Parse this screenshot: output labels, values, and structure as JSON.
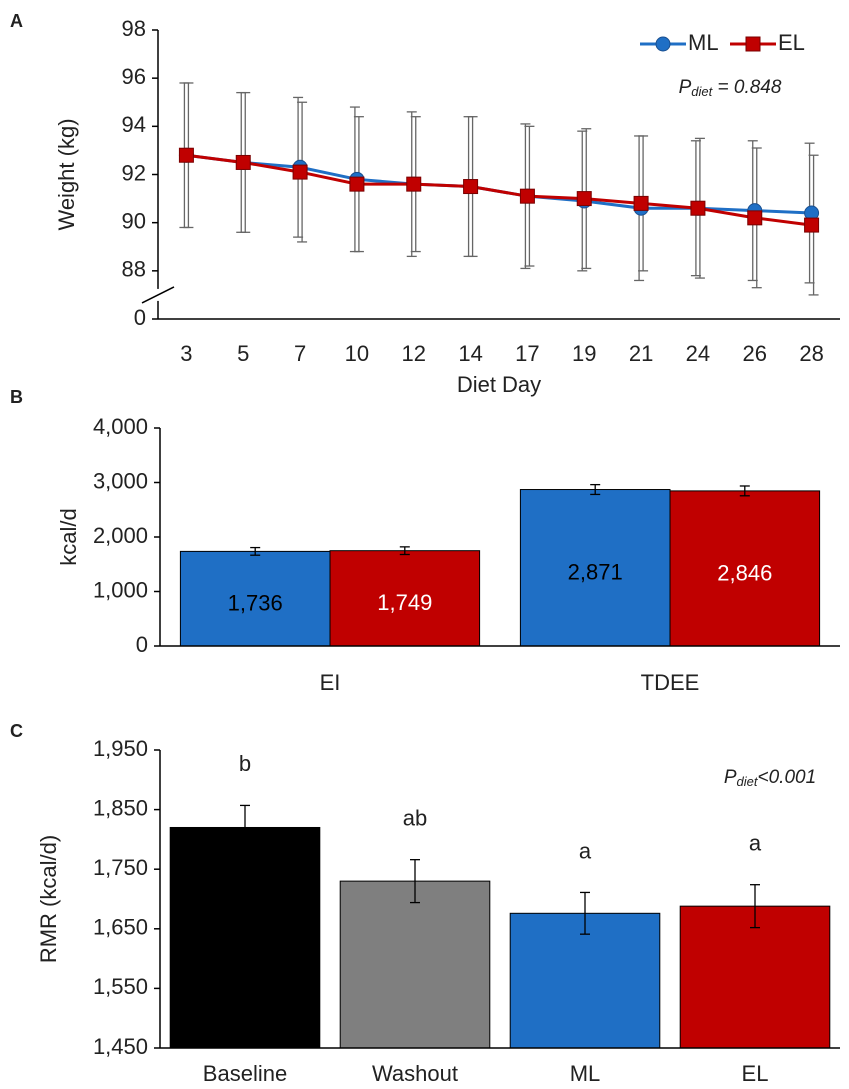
{
  "chart_data": [
    {
      "type": "line",
      "panel": "A",
      "y_label": "Weight (kg)",
      "x_label": "Diet Day",
      "categories": [
        "3",
        "5",
        "7",
        "10",
        "12",
        "14",
        "17",
        "19",
        "21",
        "24",
        "26",
        "28"
      ],
      "series": [
        {
          "name": "ML",
          "color": "#1f6fc5",
          "marker": "circle",
          "values": [
            92.8,
            92.5,
            92.3,
            91.8,
            91.6,
            91.5,
            91.1,
            90.9,
            90.6,
            90.6,
            90.5,
            90.4
          ],
          "errors": [
            3.0,
            2.9,
            2.9,
            3.0,
            3.0,
            2.9,
            3.0,
            2.9,
            3.0,
            2.8,
            2.9,
            2.9
          ]
        },
        {
          "name": "EL",
          "color": "#c00000",
          "marker": "square",
          "values": [
            92.8,
            92.5,
            92.1,
            91.6,
            91.6,
            91.5,
            91.1,
            91.0,
            90.8,
            90.6,
            90.2,
            89.9
          ],
          "errors": [
            3.0,
            2.9,
            2.9,
            2.8,
            2.8,
            2.9,
            2.9,
            2.9,
            2.8,
            2.9,
            2.9,
            2.9
          ]
        }
      ],
      "ylim": [
        0,
        98
      ],
      "yticks": [
        0,
        88,
        90,
        92,
        94,
        96,
        98
      ],
      "broken_axis": true,
      "legend": "upper right",
      "annotation": {
        "symbol": "P",
        "subscript": "diet",
        "text": " = 0.848"
      }
    },
    {
      "type": "grouped_bar",
      "panel": "B",
      "y_label": "kcal/d",
      "categories": [
        "EI",
        "TDEE"
      ],
      "series": [
        {
          "color": "#1f6fc5",
          "label_color": "#000000",
          "values": [
            1736,
            2871
          ],
          "value_labels": [
            "1,736",
            "2,871"
          ],
          "errors": [
            70,
            90
          ]
        },
        {
          "color": "#c00000",
          "label_color": "#ffffff",
          "values": [
            1749,
            2846
          ],
          "value_labels": [
            "1,749",
            "2,846"
          ],
          "errors": [
            70,
            90
          ]
        }
      ],
      "ylim": [
        0,
        4000
      ],
      "yticks": [
        0,
        {
          "value": 1000,
          "label": "1,000"
        },
        {
          "value": 2000,
          "label": "2,000"
        },
        {
          "value": 3000,
          "label": "3,000"
        },
        {
          "value": 4000,
          "label": "4,000"
        }
      ]
    },
    {
      "type": "bar",
      "panel": "C",
      "y_label": "RMR (kcal/d)",
      "categories": [
        "Baseline",
        "Washout",
        "ML",
        "EL"
      ],
      "values": [
        1820,
        1730,
        1676,
        1688
      ],
      "errors": [
        37,
        36,
        35,
        36
      ],
      "colors": [
        "#000000",
        "#7f7f7f",
        "#1f6fc5",
        "#c00000"
      ],
      "letters": [
        "b",
        "ab",
        "a",
        "a"
      ],
      "ylim": [
        1450,
        1950
      ],
      "yticks": [
        {
          "value": 1450,
          "label": "1,450"
        },
        {
          "value": 1550,
          "label": "1,550"
        },
        {
          "value": 1650,
          "label": "1,650"
        },
        {
          "value": 1750,
          "label": "1,750"
        },
        {
          "value": 1850,
          "label": "1,850"
        },
        {
          "value": 1950,
          "label": "1,950"
        }
      ],
      "annotation": {
        "symbol": "P",
        "subscript": "diet",
        "text": "<0.001"
      }
    }
  ]
}
